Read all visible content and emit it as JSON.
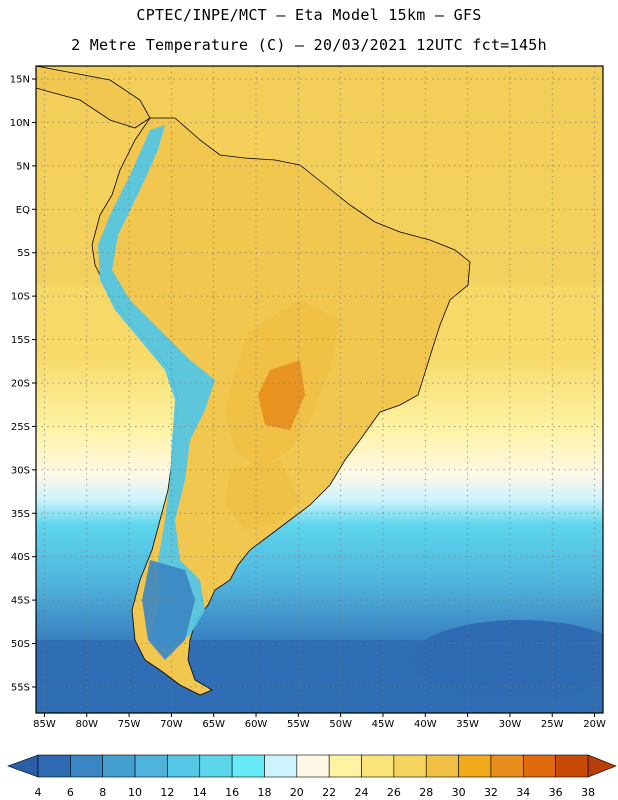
{
  "header": {
    "line1": "CPTEC/INPE/MCT –  Eta Model 15km – GFS",
    "line2": "2 Metre Temperature (C) – 20/03/2021 12UTC fct=145h"
  },
  "map": {
    "lat_ticks": [
      "15N",
      "10N",
      "5N",
      "EQ",
      "5S",
      "10S",
      "15S",
      "20S",
      "25S",
      "30S",
      "35S",
      "40S",
      "45S",
      "50S",
      "55S"
    ],
    "lon_ticks": [
      "85W",
      "80W",
      "75W",
      "70W",
      "65W",
      "60W",
      "55W",
      "50W",
      "45W",
      "40W",
      "35W",
      "30W",
      "25W",
      "20W"
    ],
    "lon_range": [
      -86,
      -19
    ],
    "lat_range": [
      16.5,
      -58
    ],
    "grid": true
  },
  "colorbar": {
    "labels": [
      "4",
      "6",
      "8",
      "10",
      "12",
      "14",
      "16",
      "18",
      "20",
      "22",
      "24",
      "26",
      "28",
      "30",
      "32",
      "34",
      "36",
      "38"
    ],
    "colors": [
      "#2e6bb3",
      "#3a85c3",
      "#44a0cf",
      "#4fb3dc",
      "#55c6e3",
      "#5dd6ec",
      "#66eaf7",
      "#cdf3fc",
      "#fff8e6",
      "#fdf3a3",
      "#fbe47a",
      "#f5d45e",
      "#efc044",
      "#f0aa1c",
      "#e88e1c",
      "#e06b0f",
      "#c94a06"
    ],
    "low_color": "#2a5ea6",
    "high_color": "#b83e08"
  },
  "palette": {
    "sea_cold": "#2f6db5",
    "sea_mid": "#46aad4",
    "sea_cyan": "#5dd6ec",
    "sea_warm": "#f5d45e",
    "land_warm": "#f2c750",
    "land_hot": "#e88e1c",
    "andes": "#55c6e3"
  }
}
